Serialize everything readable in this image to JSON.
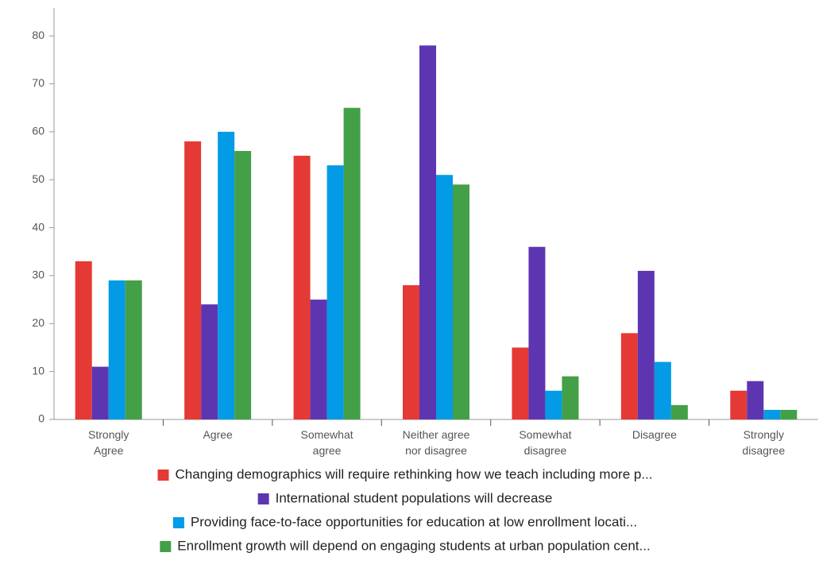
{
  "chart_data": {
    "type": "bar",
    "categories": [
      "Strongly\nAgree",
      "Agree",
      "Somewhat\nagree",
      "Neither agree\nnor disagree",
      "Somewhat\ndisagree",
      "Disagree",
      "Strongly\ndisagree"
    ],
    "series": [
      {
        "name": "Changing demographics will require rethinking how we teach including more p...",
        "color": "#e53935",
        "values": [
          33,
          58,
          55,
          28,
          15,
          18,
          6
        ]
      },
      {
        "name": "International student populations will decrease",
        "color": "#5e35b1",
        "values": [
          11,
          24,
          25,
          78,
          36,
          31,
          8
        ]
      },
      {
        "name": "Providing face-to-face opportunities for education at low enrollment locati...",
        "color": "#039be5",
        "values": [
          29,
          60,
          53,
          51,
          6,
          12,
          2
        ]
      },
      {
        "name": "Enrollment growth will depend on engaging students at urban population cent...",
        "color": "#43a047",
        "values": [
          29,
          56,
          65,
          49,
          9,
          3,
          2
        ]
      }
    ],
    "ylim": [
      0,
      85
    ],
    "yticks": [
      0,
      10,
      20,
      30,
      40,
      50,
      60,
      70,
      80
    ],
    "grid": false
  }
}
